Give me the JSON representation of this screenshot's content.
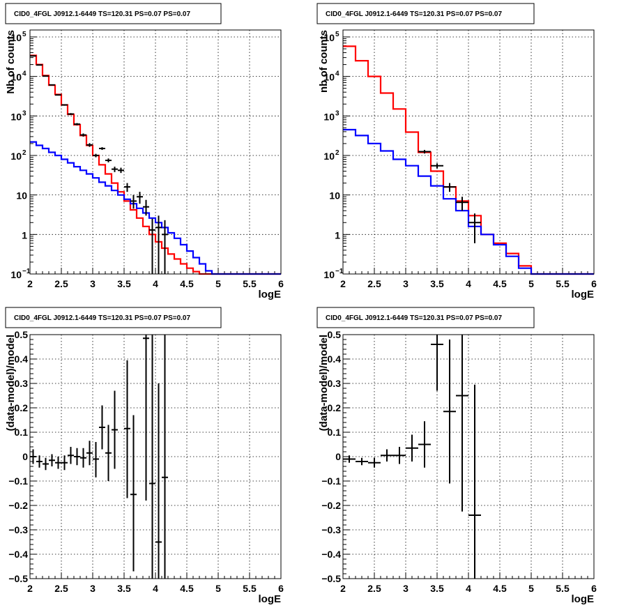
{
  "chart_data": [
    {
      "type": "line",
      "title": "CID0_4FGL J0912.1-6449 TS=120.31 PS=0.07 PS=0.07",
      "xlabel": "logE",
      "ylabel": "Nb of counts",
      "log_y": true,
      "xlim": [
        2,
        6
      ],
      "ylim": [
        0.1,
        150000
      ],
      "grid": true,
      "x_ticks": [
        "2",
        "2.5",
        "3",
        "3.5",
        "4",
        "4.5",
        "5",
        "5.5",
        "6"
      ],
      "y_ticks": [
        {
          "value": 0.1,
          "label": "10",
          "sup": "−1"
        },
        {
          "value": 1,
          "label": "1",
          "sup": ""
        },
        {
          "value": 10,
          "label": "10",
          "sup": ""
        },
        {
          "value": 100,
          "label": "10",
          "sup": "2"
        },
        {
          "value": 1000,
          "label": "10",
          "sup": "3"
        },
        {
          "value": 10000,
          "label": "10",
          "sup": "4"
        },
        {
          "value": 100000,
          "label": "10",
          "sup": "5"
        }
      ],
      "bin_edges": [
        2.0,
        2.1,
        2.2,
        2.3,
        2.4,
        2.5,
        2.6,
        2.7,
        2.8,
        2.9,
        3.0,
        3.1,
        3.2,
        3.3,
        3.4,
        3.5,
        3.6,
        3.7,
        3.8,
        3.9,
        4.0,
        4.1,
        4.2,
        4.3,
        4.4,
        4.5,
        4.6,
        4.7,
        4.8,
        4.9,
        5.0,
        5.1,
        5.2,
        5.3,
        5.4,
        5.5,
        5.6,
        5.7,
        5.8,
        5.9,
        6.0
      ],
      "series": [
        {
          "name": "",
          "color": "#ff0000",
          "values": [
            34000,
            20000,
            10500,
            6000,
            3500,
            1900,
            1100,
            600,
            320,
            180,
            100,
            58,
            34,
            20,
            12,
            7,
            4.2,
            2.6,
            1.6,
            1.0,
            0.65,
            0.45,
            0.32,
            0.24,
            0.18,
            0.14,
            0.115,
            0.1,
            0.1,
            0.1,
            0.1,
            0.1,
            0.1,
            0.1,
            0.1,
            0.1,
            0.1,
            0.1,
            0.1,
            0.1
          ]
        },
        {
          "name": "",
          "color": "#0000ff",
          "values": [
            220,
            180,
            150,
            120,
            100,
            80,
            65,
            52,
            42,
            34,
            27,
            21,
            17,
            13,
            10,
            7.8,
            6.0,
            4.6,
            3.5,
            2.6,
            2.0,
            1.5,
            1.1,
            0.8,
            0.55,
            0.38,
            0.26,
            0.18,
            0.12,
            0.1,
            0.1,
            0.1,
            0.1,
            0.1,
            0.1,
            0.1,
            0.1,
            0.1,
            0.1,
            0.1
          ]
        }
      ],
      "data_points": [
        {
          "x": 2.05,
          "y": 33000,
          "lo": 32000,
          "hi": 34000
        },
        {
          "x": 2.15,
          "y": 19500,
          "lo": 19000,
          "hi": 20000
        },
        {
          "x": 2.25,
          "y": 10200,
          "lo": 10000,
          "hi": 10500
        },
        {
          "x": 2.35,
          "y": 6100,
          "lo": 5950,
          "hi": 6250
        },
        {
          "x": 2.45,
          "y": 3400,
          "lo": 3300,
          "hi": 3500
        },
        {
          "x": 2.55,
          "y": 1900,
          "lo": 1820,
          "hi": 1980
        },
        {
          "x": 2.65,
          "y": 1120,
          "lo": 1060,
          "hi": 1180
        },
        {
          "x": 2.75,
          "y": 620,
          "lo": 580,
          "hi": 660
        },
        {
          "x": 2.85,
          "y": 330,
          "lo": 300,
          "hi": 360
        },
        {
          "x": 2.95,
          "y": 185,
          "lo": 165,
          "hi": 205
        },
        {
          "x": 3.05,
          "y": 100,
          "lo": 90,
          "hi": 110
        },
        {
          "x": 3.15,
          "y": 150,
          "lo": 138,
          "hi": 162
        },
        {
          "x": 3.25,
          "y": 75,
          "lo": 67,
          "hi": 84
        },
        {
          "x": 3.35,
          "y": 45,
          "lo": 38,
          "hi": 52
        },
        {
          "x": 3.45,
          "y": 42,
          "lo": 36,
          "hi": 49
        },
        {
          "x": 3.55,
          "y": 16,
          "lo": 12,
          "hi": 20
        },
        {
          "x": 3.65,
          "y": 7,
          "lo": 4.5,
          "hi": 10
        },
        {
          "x": 3.75,
          "y": 9,
          "lo": 6,
          "hi": 12
        },
        {
          "x": 3.85,
          "y": 5,
          "lo": 3,
          "hi": 7.5
        },
        {
          "x": 3.95,
          "y": 1.3,
          "lo": 0.1,
          "hi": 2.5
        },
        {
          "x": 4.05,
          "y": 1.5,
          "lo": 0.1,
          "hi": 3
        },
        {
          "x": 4.15,
          "y": 1.0,
          "lo": 0.1,
          "hi": 2.3
        }
      ]
    },
    {
      "type": "line",
      "title": "CID0_4FGL J0912.1-6449 TS=120.31 PS=0.07 PS=0.07",
      "xlabel": "logE",
      "ylabel": "nb of counts",
      "log_y": true,
      "xlim": [
        2,
        6
      ],
      "ylim": [
        0.1,
        150000
      ],
      "grid": true,
      "x_ticks": [
        "2",
        "2.5",
        "3",
        "3.5",
        "4",
        "4.5",
        "5",
        "5.5",
        "6"
      ],
      "y_ticks": [
        {
          "value": 0.1,
          "label": "10",
          "sup": "−1"
        },
        {
          "value": 1,
          "label": "1",
          "sup": ""
        },
        {
          "value": 10,
          "label": "10",
          "sup": ""
        },
        {
          "value": 100,
          "label": "10",
          "sup": "2"
        },
        {
          "value": 1000,
          "label": "10",
          "sup": "3"
        },
        {
          "value": 10000,
          "label": "10",
          "sup": "4"
        },
        {
          "value": 100000,
          "label": "10",
          "sup": "5"
        }
      ],
      "bin_edges": [
        2.0,
        2.2,
        2.4,
        2.6,
        2.8,
        3.0,
        3.2,
        3.4,
        3.6,
        3.8,
        4.0,
        4.2,
        4.4,
        4.6,
        4.8,
        5.0,
        5.2,
        5.4,
        5.6,
        5.8,
        6.0
      ],
      "series": [
        {
          "name": "",
          "color": "#ff0000",
          "values": [
            58000,
            25000,
            10000,
            3800,
            1500,
            390,
            120,
            40,
            16,
            7,
            3,
            1.0,
            0.6,
            0.33,
            0.16,
            0.1,
            0.1,
            0.1,
            0.1,
            0.1
          ]
        },
        {
          "name": "",
          "color": "#0000ff",
          "values": [
            450,
            320,
            200,
            130,
            80,
            55,
            30,
            17,
            8,
            4,
            1.6,
            1.0,
            0.55,
            0.28,
            0.14,
            0.1,
            0.1,
            0.1,
            0.1,
            0.1
          ]
        }
      ],
      "data_points": [
        {
          "x": 3.3,
          "y": 125,
          "lo": 112,
          "hi": 138
        },
        {
          "x": 3.5,
          "y": 55,
          "lo": 47,
          "hi": 63
        },
        {
          "x": 3.7,
          "y": 16,
          "lo": 12,
          "hi": 20
        },
        {
          "x": 3.9,
          "y": 6.5,
          "lo": 4,
          "hi": 9
        },
        {
          "x": 4.1,
          "y": 2.0,
          "lo": 0.6,
          "hi": 3.4
        }
      ]
    },
    {
      "type": "scatter",
      "title": "CID0_4FGL J0912.1-6449 TS=120.31 PS=0.07 PS=0.07",
      "xlabel": "logE",
      "ylabel": "(data-model)/model",
      "log_y": false,
      "xlim": [
        2,
        6
      ],
      "ylim": [
        -0.5,
        0.5
      ],
      "grid": true,
      "x_ticks": [
        "2",
        "2.5",
        "3",
        "3.5",
        "4",
        "4.5",
        "5",
        "5.5",
        "6"
      ],
      "y_ticks": [
        "−0.5",
        "−0.4",
        "−0.3",
        "−0.2",
        "−0.1",
        "0",
        "0.1",
        "0.2",
        "0.3",
        "0.4",
        "0.5"
      ],
      "xerr": 0.05,
      "data_points": [
        {
          "x": 2.05,
          "y": 0.0,
          "lo": -0.03,
          "hi": 0.03
        },
        {
          "x": 2.15,
          "y": -0.02,
          "lo": -0.045,
          "hi": 0.005
        },
        {
          "x": 2.25,
          "y": -0.03,
          "lo": -0.055,
          "hi": -0.005
        },
        {
          "x": 2.35,
          "y": -0.015,
          "lo": -0.04,
          "hi": 0.01
        },
        {
          "x": 2.45,
          "y": -0.025,
          "lo": -0.05,
          "hi": 0.0
        },
        {
          "x": 2.55,
          "y": -0.025,
          "lo": -0.055,
          "hi": 0.005
        },
        {
          "x": 2.65,
          "y": 0.005,
          "lo": -0.03,
          "hi": 0.04
        },
        {
          "x": 2.75,
          "y": 0.0,
          "lo": -0.035,
          "hi": 0.035
        },
        {
          "x": 2.85,
          "y": -0.005,
          "lo": -0.045,
          "hi": 0.035
        },
        {
          "x": 2.95,
          "y": 0.015,
          "lo": -0.035,
          "hi": 0.065
        },
        {
          "x": 3.05,
          "y": -0.01,
          "lo": -0.085,
          "hi": 0.06
        },
        {
          "x": 3.15,
          "y": 0.12,
          "lo": 0.03,
          "hi": 0.21
        },
        {
          "x": 3.25,
          "y": 0.015,
          "lo": -0.1,
          "hi": 0.13
        },
        {
          "x": 3.35,
          "y": 0.11,
          "lo": -0.05,
          "hi": 0.27
        },
        {
          "x": 3.55,
          "y": 0.115,
          "lo": -0.17,
          "hi": 0.395
        },
        {
          "x": 3.65,
          "y": -0.155,
          "lo": -0.47,
          "hi": 0.17
        },
        {
          "x": 3.85,
          "y": 0.485,
          "lo": -0.18,
          "hi": 0.5
        },
        {
          "x": 3.95,
          "y": -0.11,
          "lo": -0.5,
          "hi": 0.5
        },
        {
          "x": 4.05,
          "y": -0.35,
          "lo": -0.5,
          "hi": 0.3
        },
        {
          "x": 4.15,
          "y": -0.085,
          "lo": -0.5,
          "hi": 0.5
        }
      ]
    },
    {
      "type": "scatter",
      "title": "CID0_4FGL J0912.1-6449 TS=120.31 PS=0.07 PS=0.07",
      "xlabel": "logE",
      "ylabel": "(data-model)/model",
      "log_y": false,
      "xlim": [
        2,
        6
      ],
      "ylim": [
        -0.5,
        0.5
      ],
      "grid": true,
      "x_ticks": [
        "2",
        "2.5",
        "3",
        "3.5",
        "4",
        "4.5",
        "5",
        "5.5",
        "6"
      ],
      "y_ticks": [
        "−0.5",
        "−0.4",
        "−0.3",
        "−0.2",
        "−0.1",
        "0",
        "0.1",
        "0.2",
        "0.3",
        "0.4",
        "0.5"
      ],
      "xerr": 0.1,
      "data_points": [
        {
          "x": 2.1,
          "y": -0.01,
          "lo": -0.025,
          "hi": 0.005
        },
        {
          "x": 2.3,
          "y": -0.02,
          "lo": -0.035,
          "hi": -0.005
        },
        {
          "x": 2.5,
          "y": -0.025,
          "lo": -0.045,
          "hi": -0.005
        },
        {
          "x": 2.7,
          "y": 0.005,
          "lo": -0.02,
          "hi": 0.03
        },
        {
          "x": 2.9,
          "y": 0.005,
          "lo": -0.03,
          "hi": 0.04
        },
        {
          "x": 3.1,
          "y": 0.035,
          "lo": -0.02,
          "hi": 0.09
        },
        {
          "x": 3.3,
          "y": 0.05,
          "lo": -0.045,
          "hi": 0.145
        },
        {
          "x": 3.5,
          "y": 0.46,
          "lo": 0.27,
          "hi": 0.5
        },
        {
          "x": 3.7,
          "y": 0.185,
          "lo": -0.11,
          "hi": 0.48
        },
        {
          "x": 3.9,
          "y": 0.25,
          "lo": -0.225,
          "hi": 0.5
        },
        {
          "x": 4.1,
          "y": -0.24,
          "lo": -0.5,
          "hi": 0.295
        }
      ]
    }
  ]
}
